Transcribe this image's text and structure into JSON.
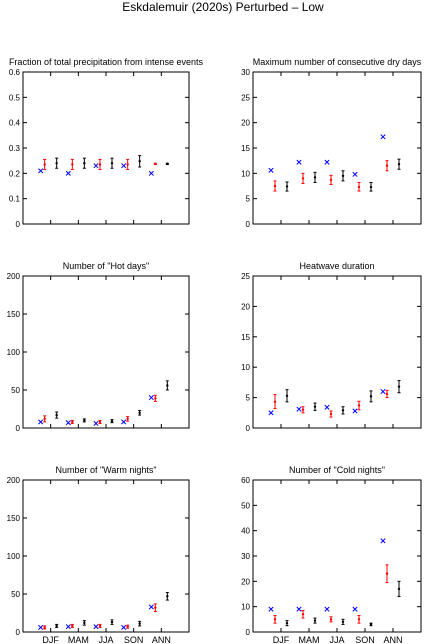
{
  "figure": {
    "title": "Eskdalemuir (2020s) Perturbed – Low"
  },
  "colors": {
    "low": "#ff0000",
    "high": "#000000",
    "obs": "#0000ff",
    "axis": "#000000"
  },
  "chart_data": [
    {
      "type": "scatter",
      "title": "Fraction of total precipitation from intense events",
      "categories": [
        "DJF",
        "MAM",
        "JJA",
        "SON",
        "ANN"
      ],
      "ylim": [
        0,
        0.6
      ],
      "yticks": [
        "0",
        "0.1",
        "0.2",
        "0.3",
        "0.4",
        "0.5",
        "0.6"
      ],
      "show_xticklabels": false,
      "series": [
        {
          "kind": "errorbar",
          "color": "red",
          "values": [
            [
              0.215,
              0.235,
              0.255
            ],
            [
              0.215,
              0.235,
              0.255
            ],
            [
              0.215,
              0.235,
              0.255
            ],
            [
              0.215,
              0.235,
              0.255
            ],
            [
              0.235,
              0.237,
              0.24
            ]
          ]
        },
        {
          "kind": "errorbar",
          "color": "black",
          "values": [
            [
              0.22,
              0.24,
              0.26
            ],
            [
              0.22,
              0.24,
              0.26
            ],
            [
              0.22,
              0.24,
              0.26
            ],
            [
              0.225,
              0.248,
              0.27
            ],
            [
              0.235,
              0.237,
              0.24
            ]
          ]
        },
        {
          "kind": "cross",
          "color": "blue",
          "values": [
            0.21,
            0.2,
            0.23,
            0.23,
            0.2
          ]
        }
      ]
    },
    {
      "type": "scatter",
      "title": "Maximum number of consecutive dry days",
      "categories": [
        "DJF",
        "MAM",
        "JJA",
        "SON",
        "ANN"
      ],
      "ylim": [
        0,
        30
      ],
      "yticks": [
        "0",
        "5",
        "10",
        "15",
        "20",
        "25",
        "30"
      ],
      "show_xticklabels": false,
      "series": [
        {
          "kind": "errorbar",
          "color": "red",
          "values": [
            [
              6.5,
              7.5,
              8.5
            ],
            [
              8,
              9,
              10
            ],
            [
              7.8,
              8.7,
              9.6
            ],
            [
              6.5,
              7.3,
              8.2
            ],
            [
              10.5,
              11.5,
              12.5
            ]
          ]
        },
        {
          "kind": "errorbar",
          "color": "black",
          "values": [
            [
              6.5,
              7.4,
              8.3
            ],
            [
              8.2,
              9.2,
              10.2
            ],
            [
              8.5,
              9.5,
              10.5
            ],
            [
              6.5,
              7.3,
              8.2
            ],
            [
              10.8,
              11.8,
              12.8
            ]
          ]
        },
        {
          "kind": "cross",
          "color": "blue",
          "values": [
            10.6,
            12.2,
            12.2,
            9.8,
            17.2
          ]
        }
      ]
    },
    {
      "type": "scatter",
      "title": "Number of \"Hot days\"",
      "categories": [
        "DJF",
        "MAM",
        "JJA",
        "SON",
        "ANN"
      ],
      "ylim": [
        0,
        200
      ],
      "yticks": [
        "0",
        "50",
        "100",
        "150",
        "200"
      ],
      "show_xticklabels": false,
      "series": [
        {
          "kind": "errorbar",
          "color": "red",
          "values": [
            [
              8,
              12,
              16
            ],
            [
              6,
              8,
              10
            ],
            [
              6,
              8,
              10
            ],
            [
              9,
              12,
              15
            ],
            [
              35,
              39,
              43
            ]
          ]
        },
        {
          "kind": "errorbar",
          "color": "black",
          "values": [
            [
              13,
              17,
              21
            ],
            [
              8,
              10,
              12
            ],
            [
              7,
              9,
              11
            ],
            [
              17,
              20,
              23
            ],
            [
              50,
              56,
              62
            ]
          ]
        },
        {
          "kind": "cross",
          "color": "blue",
          "values": [
            8,
            7,
            6,
            8,
            40
          ]
        }
      ]
    },
    {
      "type": "scatter",
      "title": "Heatwave duration",
      "categories": [
        "DJF",
        "MAM",
        "JJA",
        "SON",
        "ANN"
      ],
      "ylim": [
        0,
        25
      ],
      "yticks": [
        "0",
        "5",
        "10",
        "15",
        "20",
        "25"
      ],
      "show_xticklabels": false,
      "series": [
        {
          "kind": "errorbar",
          "color": "red",
          "values": [
            [
              3.2,
              4.3,
              5.5
            ],
            [
              2.5,
              3,
              3.5
            ],
            [
              1.8,
              2.3,
              2.8
            ],
            [
              3,
              3.7,
              4.4
            ],
            [
              5,
              5.6,
              6.2
            ]
          ]
        },
        {
          "kind": "errorbar",
          "color": "black",
          "values": [
            [
              4.3,
              5.3,
              6.3
            ],
            [
              2.9,
              3.5,
              4.1
            ],
            [
              2.3,
              2.9,
              3.5
            ],
            [
              4.3,
              5.2,
              6.1
            ],
            [
              5.8,
              6.8,
              7.8
            ]
          ]
        },
        {
          "kind": "cross",
          "color": "blue",
          "values": [
            2.5,
            3.1,
            3.4,
            2.8,
            6.0
          ]
        }
      ]
    },
    {
      "type": "scatter",
      "title": "Number of \"Warm nights\"",
      "categories": [
        "DJF",
        "MAM",
        "JJA",
        "SON",
        "ANN"
      ],
      "ylim": [
        0,
        200
      ],
      "yticks": [
        "0",
        "50",
        "100",
        "150",
        "200"
      ],
      "show_xticklabels": true,
      "series": [
        {
          "kind": "errorbar",
          "color": "red",
          "values": [
            [
              4,
              6,
              8
            ],
            [
              6,
              8,
              10
            ],
            [
              6,
              8,
              10
            ],
            [
              5,
              7,
              9
            ],
            [
              27,
              32,
              37
            ]
          ]
        },
        {
          "kind": "errorbar",
          "color": "black",
          "values": [
            [
              6,
              8,
              10
            ],
            [
              9,
              12,
              15
            ],
            [
              10,
              13,
              16
            ],
            [
              8,
              11,
              14
            ],
            [
              42,
              47,
              52
            ]
          ]
        },
        {
          "kind": "cross",
          "color": "blue",
          "values": [
            6,
            7,
            7,
            6,
            33
          ]
        }
      ]
    },
    {
      "type": "scatter",
      "title": "Number of \"Cold nights\"",
      "categories": [
        "DJF",
        "MAM",
        "JJA",
        "SON",
        "ANN"
      ],
      "ylim": [
        0,
        60
      ],
      "yticks": [
        "0",
        "10",
        "20",
        "30",
        "40",
        "50",
        "60"
      ],
      "show_xticklabels": true,
      "series": [
        {
          "kind": "errorbar",
          "color": "red",
          "values": [
            [
              3.5,
              5,
              6.5
            ],
            [
              5.5,
              7,
              8.5
            ],
            [
              4,
              5,
              6
            ],
            [
              3.5,
              5,
              6.5
            ],
            [
              19.5,
              23,
              26.5
            ]
          ]
        },
        {
          "kind": "errorbar",
          "color": "black",
          "values": [
            [
              2.5,
              3.5,
              4.5
            ],
            [
              3.5,
              4.5,
              5.5
            ],
            [
              3,
              4,
              5
            ],
            [
              2.5,
              3,
              3.5
            ],
            [
              14,
              17,
              20
            ]
          ]
        },
        {
          "kind": "cross",
          "color": "blue",
          "values": [
            9,
            9,
            9,
            9,
            36
          ]
        }
      ]
    }
  ]
}
